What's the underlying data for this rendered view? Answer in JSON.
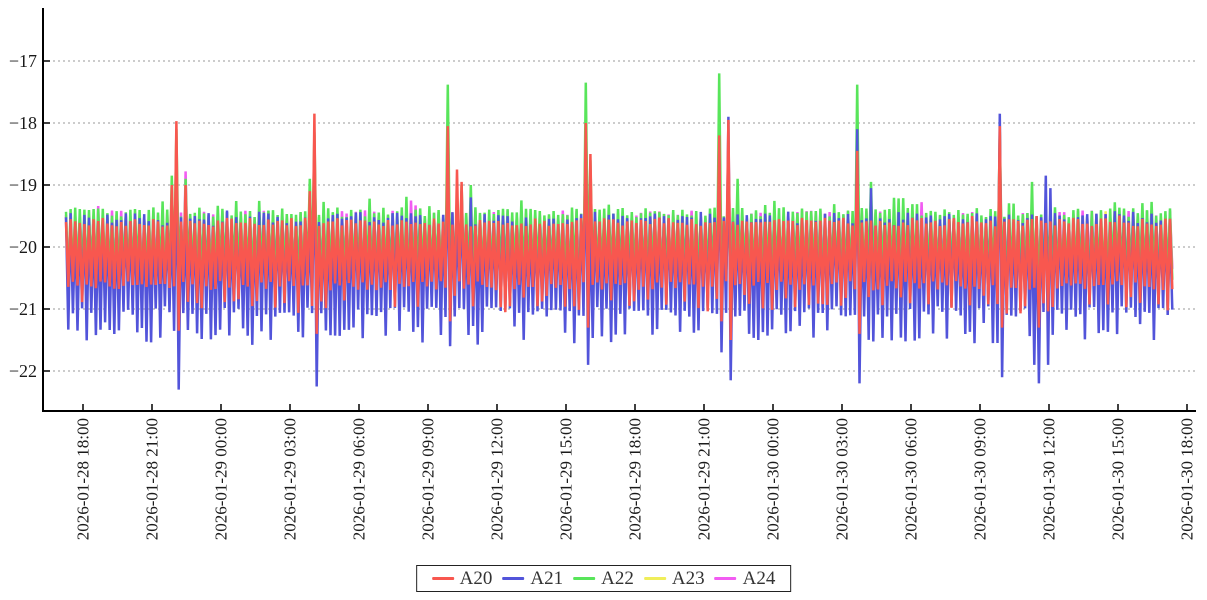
{
  "chart_data": {
    "type": "line",
    "title": "",
    "xlabel": "",
    "ylabel": "",
    "grid": "dotted horizontal gridlines",
    "legend_position": "bottom-center",
    "x_axis": {
      "kind": "datetime",
      "tick_interval_hours": 3,
      "labels_rotated_90": true,
      "tick_labels": [
        "2026-01-28 18:00",
        "2026-01-28 21:00",
        "2026-01-29 00:00",
        "2026-01-29 03:00",
        "2026-01-29 06:00",
        "2026-01-29 09:00",
        "2026-01-29 12:00",
        "2026-01-29 15:00",
        "2026-01-29 18:00",
        "2026-01-29 21:00",
        "2026-01-30 00:00",
        "2026-01-30 03:00",
        "2026-01-30 06:00",
        "2026-01-30 09:00",
        "2026-01-30 12:00",
        "2026-01-30 15:00",
        "2026-01-30 18:00"
      ]
    },
    "y_axis": {
      "ticks": [
        {
          "label": "−17",
          "value": -17
        },
        {
          "label": "−18",
          "value": -18
        },
        {
          "label": "−19",
          "value": -19
        },
        {
          "label": "−20",
          "value": -20
        },
        {
          "label": "−21",
          "value": -21
        },
        {
          "label": "−22",
          "value": -22
        }
      ],
      "range": [
        -22.6,
        -16.2
      ]
    },
    "description": "Five dense, noisy oscillating series (zigzag between a top band near −19.5 and a bottom band near −20.6 to −21.4) with large synchronized spike events roughly every 6 hours reaching up to −17.2 and deep dips to about −22.3.",
    "sampling_hours_per_point": 0.1,
    "t_start_hours": -0.74,
    "t_end_hours": 47.45,
    "series": [
      {
        "name": "A20",
        "color": "#f8574f",
        "seed": 11,
        "top": {
          "mean": -19.6,
          "jitter": 0.07,
          "spike_p": 0.05,
          "spike_amp": 0.08
        },
        "bottom": {
          "mean": -20.55,
          "jitter": 0.15,
          "deep_p": 0.3,
          "deep_amp": 0.4
        }
      },
      {
        "name": "A21",
        "color": "#5254da",
        "seed": 22,
        "top": {
          "mean": -19.55,
          "jitter": 0.12,
          "spike_p": 0.06,
          "spike_amp": 0.1
        },
        "bottom": {
          "mean": -20.95,
          "jitter": 0.18,
          "deep_p": 0.45,
          "deep_amp": 0.5
        }
      },
      {
        "name": "A22",
        "color": "#58e55a",
        "seed": 33,
        "top": {
          "mean": -19.44,
          "jitter": 0.08,
          "spike_p": 0.1,
          "spike_amp": 0.18
        },
        "bottom": {
          "mean": -20.35,
          "jitter": 0.2,
          "deep_p": 0.1,
          "deep_amp": 0.25
        }
      },
      {
        "name": "A23",
        "color": "#f0ee5a",
        "seed": 44,
        "top": {
          "mean": -19.55,
          "jitter": 0.05,
          "spike_p": 0.02,
          "spike_amp": 0.15
        },
        "bottom": {
          "mean": -20.3,
          "jitter": 0.15,
          "deep_p": 0.05,
          "deep_amp": 0.2
        }
      },
      {
        "name": "A24",
        "color": "#f25cf2",
        "seed": 55,
        "top": {
          "mean": -19.48,
          "jitter": 0.07,
          "spike_p": 0.03,
          "spike_amp": 0.22
        },
        "bottom": {
          "mean": -20.35,
          "jitter": 0.15,
          "deep_p": 0.05,
          "deep_amp": 0.2
        }
      }
    ],
    "draw_order": [
      "A23",
      "A24",
      "A22",
      "A21",
      "A20"
    ],
    "impulses": [
      {
        "t": 3.9,
        "tops": {
          "A22": -18.85,
          "A20": -19.0
        }
      },
      {
        "t": 4.15,
        "tops": {
          "A20": -17.97,
          "A22": -18.1,
          "A21": -18.5,
          "A23": -18.6,
          "A24": -18.5
        },
        "dips": {
          "A21": -22.3,
          "A20": -21.35
        }
      },
      {
        "t": 4.5,
        "tops": {
          "A24": -18.78,
          "A22": -18.9,
          "A20": -19.0
        }
      },
      {
        "t": 9.85,
        "tops": {
          "A22": -18.9,
          "A20": -19.1
        }
      },
      {
        "t": 10.1,
        "tops": {
          "A20": -17.85,
          "A22": -18.15,
          "A21": -18.4,
          "A23": -18.5,
          "A24": -18.45
        },
        "dips": {
          "A21": -22.25,
          "A20": -21.4
        }
      },
      {
        "t": 15.95,
        "tops": {
          "A22": -17.38,
          "A20": -18.05,
          "A21": -18.4,
          "A23": -18.55,
          "A24": -18.5
        },
        "dips": {
          "A21": -21.6,
          "A20": -21.2
        }
      },
      {
        "t": 16.25,
        "tops": {
          "A20": -18.75
        }
      },
      {
        "t": 16.55,
        "tops": {
          "A20": -18.95,
          "A21": -19.1,
          "A22": -19.0
        }
      },
      {
        "t": 16.9,
        "tops": {
          "A22": -19.0,
          "A21": -19.2
        }
      },
      {
        "t": 21.85,
        "tops": {
          "A22": -17.35,
          "A20": -18.0,
          "A24": -17.92,
          "A21": -18.3,
          "A23": -18.4
        },
        "dips": {
          "A21": -21.9,
          "A20": -21.3
        }
      },
      {
        "t": 22.2,
        "tops": {
          "A20": -18.5,
          "A22": -18.6
        }
      },
      {
        "t": 27.75,
        "tops": {
          "A22": -17.2,
          "A20": -18.2,
          "A21": -18.45
        },
        "dips": {
          "A21": -21.7,
          "A20": -21.2
        }
      },
      {
        "t": 28.05,
        "tops": {
          "A20": -17.95,
          "A21": -17.9,
          "A24": -18.4,
          "A23": -18.5
        },
        "dips": {
          "A21": -22.15,
          "A20": -21.5
        }
      },
      {
        "t": 28.5,
        "tops": {
          "A22": -18.9
        }
      },
      {
        "t": 33.8,
        "tops": {
          "A22": -17.38,
          "A21": -18.1,
          "A20": -18.45,
          "A23": -18.6,
          "A24": -18.55
        },
        "dips": {
          "A21": -22.2,
          "A20": -21.4
        }
      },
      {
        "t": 34.35,
        "tops": {
          "A22": -18.95,
          "A21": -19.05
        }
      },
      {
        "t": 40.0,
        "tops": {
          "A21": -17.85,
          "A20": -18.05,
          "A22": -18.15,
          "A23": -18.6,
          "A24": -18.5
        },
        "dips": {
          "A21": -22.1,
          "A20": -21.3
        }
      },
      {
        "t": 40.5,
        "tops": {
          "A22": -19.3
        }
      },
      {
        "t": 41.3,
        "tops": {
          "A22": -18.95
        },
        "dips": {
          "A21": -21.9
        }
      },
      {
        "t": 41.6,
        "tops": {
          "A20": -19.5
        },
        "dips": {
          "A21": -22.2,
          "A20": -21.3
        }
      },
      {
        "t": 41.9,
        "tops": {
          "A21": -18.85
        },
        "dips": {
          "A21": -21.9
        }
      },
      {
        "t": 42.15,
        "tops": {
          "A21": -19.05
        }
      }
    ]
  },
  "legend": {
    "items": [
      {
        "label": "A20",
        "color": "#f8574f"
      },
      {
        "label": "A21",
        "color": "#5254da"
      },
      {
        "label": "A22",
        "color": "#58e55a"
      },
      {
        "label": "A23",
        "color": "#f0ee5a"
      },
      {
        "label": "A24",
        "color": "#f25cf2"
      }
    ]
  },
  "colors": {
    "background": "#ffffff",
    "axis": "#000000",
    "grid": "#999999",
    "text": "#1a1a1a"
  }
}
